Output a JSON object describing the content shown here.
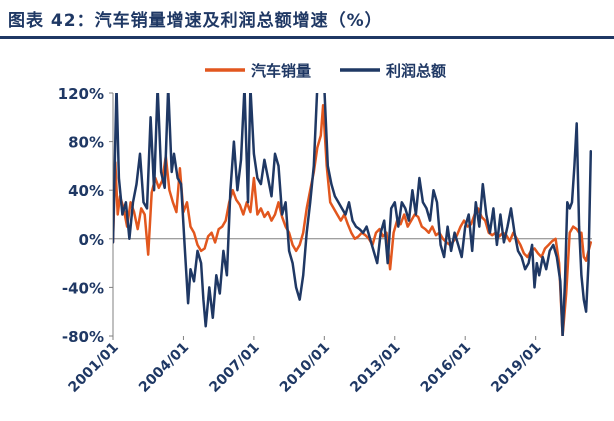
{
  "chart_data": {
    "type": "line",
    "title": "图表 42：汽车销量增速及利润总额增速（%）",
    "ylim": [
      -80,
      120
    ],
    "yticks": [
      120,
      80,
      40,
      0,
      -40,
      -80
    ],
    "ytick_labels": [
      "120%",
      "80%",
      "40%",
      "0%",
      "-40%",
      "-80%"
    ],
    "xlim": [
      2001.0,
      2021.4
    ],
    "xticks": [
      {
        "x": 2001.0,
        "label": "2001/01"
      },
      {
        "x": 2004.0,
        "label": "2004/01"
      },
      {
        "x": 2007.0,
        "label": "2007/01"
      },
      {
        "x": 2010.0,
        "label": "2010/01"
      },
      {
        "x": 2013.0,
        "label": "2013/01"
      },
      {
        "x": 2016.0,
        "label": "2016/01"
      },
      {
        "x": 2019.0,
        "label": "2019/01"
      }
    ],
    "legend_position": "top",
    "grid": false,
    "series": [
      {
        "name": "汽车销量",
        "color": "#E2571E",
        "points": [
          [
            2001.0,
            -3
          ],
          [
            2001.1,
            63
          ],
          [
            2001.2,
            20
          ],
          [
            2001.3,
            35
          ],
          [
            2001.45,
            25
          ],
          [
            2001.6,
            10
          ],
          [
            2001.75,
            30
          ],
          [
            2001.9,
            22
          ],
          [
            2002.05,
            8
          ],
          [
            2002.2,
            25
          ],
          [
            2002.35,
            20
          ],
          [
            2002.5,
            -13
          ],
          [
            2002.65,
            38
          ],
          [
            2002.8,
            50
          ],
          [
            2002.95,
            42
          ],
          [
            2003.1,
            48
          ],
          [
            2003.25,
            68
          ],
          [
            2003.4,
            40
          ],
          [
            2003.55,
            30
          ],
          [
            2003.7,
            22
          ],
          [
            2003.85,
            58
          ],
          [
            2004.0,
            22
          ],
          [
            2004.15,
            30
          ],
          [
            2004.3,
            10
          ],
          [
            2004.45,
            5
          ],
          [
            2004.6,
            -5
          ],
          [
            2004.75,
            -10
          ],
          [
            2004.9,
            -8
          ],
          [
            2005.05,
            2
          ],
          [
            2005.2,
            5
          ],
          [
            2005.35,
            -3
          ],
          [
            2005.5,
            8
          ],
          [
            2005.65,
            10
          ],
          [
            2005.8,
            15
          ],
          [
            2005.95,
            30
          ],
          [
            2006.1,
            40
          ],
          [
            2006.25,
            32
          ],
          [
            2006.4,
            28
          ],
          [
            2006.55,
            20
          ],
          [
            2006.7,
            30
          ],
          [
            2006.85,
            22
          ],
          [
            2007.0,
            50
          ],
          [
            2007.15,
            20
          ],
          [
            2007.3,
            25
          ],
          [
            2007.45,
            18
          ],
          [
            2007.6,
            22
          ],
          [
            2007.75,
            15
          ],
          [
            2007.9,
            20
          ],
          [
            2008.05,
            30
          ],
          [
            2008.2,
            18
          ],
          [
            2008.35,
            10
          ],
          [
            2008.5,
            5
          ],
          [
            2008.65,
            -5
          ],
          [
            2008.8,
            -10
          ],
          [
            2008.95,
            -5
          ],
          [
            2009.1,
            5
          ],
          [
            2009.25,
            25
          ],
          [
            2009.4,
            40
          ],
          [
            2009.55,
            55
          ],
          [
            2009.7,
            75
          ],
          [
            2009.85,
            85
          ],
          [
            2009.95,
            110
          ],
          [
            2010.1,
            60
          ],
          [
            2010.25,
            30
          ],
          [
            2010.4,
            25
          ],
          [
            2010.55,
            20
          ],
          [
            2010.7,
            15
          ],
          [
            2010.85,
            20
          ],
          [
            2011.0,
            12
          ],
          [
            2011.15,
            5
          ],
          [
            2011.3,
            0
          ],
          [
            2011.45,
            2
          ],
          [
            2011.6,
            5
          ],
          [
            2011.75,
            3
          ],
          [
            2011.9,
            0
          ],
          [
            2012.05,
            -5
          ],
          [
            2012.2,
            5
          ],
          [
            2012.35,
            8
          ],
          [
            2012.5,
            2
          ],
          [
            2012.65,
            5
          ],
          [
            2012.8,
            -25
          ],
          [
            2012.95,
            5
          ],
          [
            2013.1,
            15
          ],
          [
            2013.25,
            12
          ],
          [
            2013.4,
            20
          ],
          [
            2013.55,
            10
          ],
          [
            2013.7,
            15
          ],
          [
            2013.85,
            20
          ],
          [
            2014.0,
            18
          ],
          [
            2014.15,
            10
          ],
          [
            2014.3,
            8
          ],
          [
            2014.45,
            5
          ],
          [
            2014.6,
            10
          ],
          [
            2014.75,
            3
          ],
          [
            2014.9,
            5
          ],
          [
            2015.05,
            0
          ],
          [
            2015.2,
            -3
          ],
          [
            2015.35,
            -5
          ],
          [
            2015.5,
            -2
          ],
          [
            2015.65,
            3
          ],
          [
            2015.8,
            10
          ],
          [
            2015.95,
            15
          ],
          [
            2016.1,
            10
          ],
          [
            2016.25,
            12
          ],
          [
            2016.4,
            20
          ],
          [
            2016.55,
            25
          ],
          [
            2016.7,
            18
          ],
          [
            2016.85,
            15
          ],
          [
            2017.0,
            5
          ],
          [
            2017.15,
            3
          ],
          [
            2017.3,
            5
          ],
          [
            2017.45,
            2
          ],
          [
            2017.6,
            5
          ],
          [
            2017.75,
            3
          ],
          [
            2017.9,
            -2
          ],
          [
            2018.05,
            5
          ],
          [
            2018.2,
            0
          ],
          [
            2018.35,
            -5
          ],
          [
            2018.5,
            -12
          ],
          [
            2018.65,
            -15
          ],
          [
            2018.8,
            -10
          ],
          [
            2018.95,
            -8
          ],
          [
            2019.1,
            -12
          ],
          [
            2019.25,
            -15
          ],
          [
            2019.4,
            -8
          ],
          [
            2019.55,
            -5
          ],
          [
            2019.7,
            -2
          ],
          [
            2019.85,
            0
          ],
          [
            2020.0,
            -20
          ],
          [
            2020.15,
            -80
          ],
          [
            2020.3,
            -45
          ],
          [
            2020.45,
            5
          ],
          [
            2020.6,
            10
          ],
          [
            2020.75,
            8
          ],
          [
            2020.85,
            5
          ],
          [
            2020.95,
            5
          ],
          [
            2021.05,
            -15
          ],
          [
            2021.15,
            -18
          ],
          [
            2021.25,
            -10
          ],
          [
            2021.35,
            -3
          ]
        ]
      },
      {
        "name": "利润总额",
        "color": "#1F3864",
        "points": [
          [
            2001.0,
            -3
          ],
          [
            2001.15,
            125
          ],
          [
            2001.25,
            50
          ],
          [
            2001.4,
            20
          ],
          [
            2001.55,
            30
          ],
          [
            2001.7,
            0
          ],
          [
            2001.85,
            30
          ],
          [
            2002.0,
            45
          ],
          [
            2002.15,
            70
          ],
          [
            2002.3,
            30
          ],
          [
            2002.45,
            25
          ],
          [
            2002.6,
            100
          ],
          [
            2002.75,
            40
          ],
          [
            2002.9,
            125
          ],
          [
            2003.05,
            55
          ],
          [
            2003.2,
            42
          ],
          [
            2003.35,
            125
          ],
          [
            2003.5,
            55
          ],
          [
            2003.6,
            70
          ],
          [
            2003.75,
            50
          ],
          [
            2003.9,
            45
          ],
          [
            2004.05,
            -5
          ],
          [
            2004.2,
            -53
          ],
          [
            2004.3,
            -25
          ],
          [
            2004.45,
            -35
          ],
          [
            2004.6,
            -10
          ],
          [
            2004.75,
            -20
          ],
          [
            2004.85,
            -50
          ],
          [
            2004.95,
            -72
          ],
          [
            2005.1,
            -40
          ],
          [
            2005.25,
            -65
          ],
          [
            2005.4,
            -30
          ],
          [
            2005.55,
            -45
          ],
          [
            2005.7,
            -10
          ],
          [
            2005.85,
            -30
          ],
          [
            2006.0,
            40
          ],
          [
            2006.15,
            80
          ],
          [
            2006.3,
            40
          ],
          [
            2006.45,
            65
          ],
          [
            2006.6,
            125
          ],
          [
            2006.75,
            30
          ],
          [
            2006.85,
            125
          ],
          [
            2007.0,
            70
          ],
          [
            2007.15,
            50
          ],
          [
            2007.3,
            45
          ],
          [
            2007.45,
            65
          ],
          [
            2007.6,
            50
          ],
          [
            2007.75,
            35
          ],
          [
            2007.9,
            70
          ],
          [
            2008.05,
            60
          ],
          [
            2008.2,
            20
          ],
          [
            2008.35,
            30
          ],
          [
            2008.5,
            -10
          ],
          [
            2008.65,
            -20
          ],
          [
            2008.8,
            -40
          ],
          [
            2008.95,
            -50
          ],
          [
            2009.1,
            -30
          ],
          [
            2009.25,
            5
          ],
          [
            2009.4,
            30
          ],
          [
            2009.55,
            60
          ],
          [
            2009.7,
            125
          ],
          [
            2009.85,
            125
          ],
          [
            2010.0,
            125
          ],
          [
            2010.15,
            60
          ],
          [
            2010.3,
            45
          ],
          [
            2010.45,
            35
          ],
          [
            2010.6,
            30
          ],
          [
            2010.75,
            25
          ],
          [
            2010.9,
            20
          ],
          [
            2011.05,
            30
          ],
          [
            2011.2,
            15
          ],
          [
            2011.35,
            10
          ],
          [
            2011.5,
            8
          ],
          [
            2011.65,
            5
          ],
          [
            2011.8,
            10
          ],
          [
            2011.95,
            0
          ],
          [
            2012.1,
            -10
          ],
          [
            2012.25,
            -20
          ],
          [
            2012.4,
            5
          ],
          [
            2012.55,
            15
          ],
          [
            2012.7,
            -20
          ],
          [
            2012.85,
            25
          ],
          [
            2013.0,
            30
          ],
          [
            2013.15,
            10
          ],
          [
            2013.3,
            30
          ],
          [
            2013.45,
            25
          ],
          [
            2013.6,
            15
          ],
          [
            2013.75,
            40
          ],
          [
            2013.9,
            20
          ],
          [
            2014.05,
            50
          ],
          [
            2014.2,
            30
          ],
          [
            2014.35,
            25
          ],
          [
            2014.5,
            15
          ],
          [
            2014.65,
            40
          ],
          [
            2014.8,
            30
          ],
          [
            2014.95,
            -5
          ],
          [
            2015.1,
            -15
          ],
          [
            2015.25,
            10
          ],
          [
            2015.4,
            -10
          ],
          [
            2015.55,
            5
          ],
          [
            2015.7,
            -5
          ],
          [
            2015.85,
            -15
          ],
          [
            2016.0,
            10
          ],
          [
            2016.15,
            20
          ],
          [
            2016.3,
            -10
          ],
          [
            2016.45,
            30
          ],
          [
            2016.6,
            10
          ],
          [
            2016.75,
            45
          ],
          [
            2016.9,
            20
          ],
          [
            2017.05,
            5
          ],
          [
            2017.2,
            25
          ],
          [
            2017.35,
            -5
          ],
          [
            2017.5,
            20
          ],
          [
            2017.65,
            -3
          ],
          [
            2017.8,
            10
          ],
          [
            2017.95,
            25
          ],
          [
            2018.1,
            5
          ],
          [
            2018.25,
            -10
          ],
          [
            2018.4,
            -15
          ],
          [
            2018.55,
            -25
          ],
          [
            2018.7,
            -20
          ],
          [
            2018.85,
            -5
          ],
          [
            2018.95,
            -40
          ],
          [
            2019.05,
            -20
          ],
          [
            2019.15,
            -30
          ],
          [
            2019.3,
            -15
          ],
          [
            2019.45,
            -25
          ],
          [
            2019.6,
            -10
          ],
          [
            2019.75,
            -5
          ],
          [
            2019.9,
            -15
          ],
          [
            2020.05,
            -35
          ],
          [
            2020.15,
            -80
          ],
          [
            2020.25,
            -35
          ],
          [
            2020.35,
            30
          ],
          [
            2020.45,
            25
          ],
          [
            2020.55,
            30
          ],
          [
            2020.65,
            60
          ],
          [
            2020.75,
            95
          ],
          [
            2020.85,
            10
          ],
          [
            2020.95,
            -30
          ],
          [
            2021.05,
            -50
          ],
          [
            2021.15,
            -60
          ],
          [
            2021.25,
            -20
          ],
          [
            2021.35,
            72
          ]
        ]
      }
    ]
  }
}
